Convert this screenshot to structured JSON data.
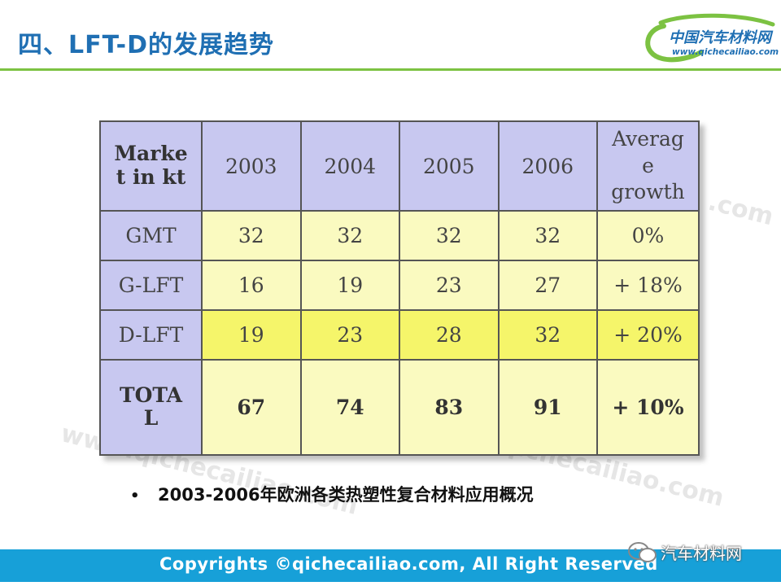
{
  "slide": {
    "title": "四、LFT-D的发展趋势",
    "caption": "2003-2006年欧洲各类热塑性复合材料应用概况",
    "bullet": "•",
    "footer": "Copyrights ©qichecailiao.com,  All Right Reserved",
    "wechat_label": "汽车材料网"
  },
  "logo": {
    "name": "中国汽车材料网",
    "url": "www.qichecailiao.com"
  },
  "watermarks": [
    "www.qichecailiao.com",
    "www.qichecailiao.com",
    ".com"
  ],
  "table": {
    "corner": [
      "Marke",
      "t in kt"
    ],
    "years": [
      "2003",
      "2004",
      "2005",
      "2006"
    ],
    "avg_header": [
      "Averag",
      "e",
      "growth"
    ],
    "rows": [
      {
        "label": "GMT",
        "values": [
          "32",
          "32",
          "32",
          "32"
        ],
        "growth": "0%"
      },
      {
        "label": "G-LFT",
        "values": [
          "16",
          "19",
          "23",
          "27"
        ],
        "growth": "+ 18%"
      },
      {
        "label": "D-LFT",
        "values": [
          "19",
          "23",
          "28",
          "32"
        ],
        "growth": "+ 20%"
      },
      {
        "label_lines": [
          "TOTA",
          "L"
        ],
        "values": [
          "67",
          "74",
          "83",
          "91"
        ],
        "growth": "+ 10%"
      }
    ]
  },
  "colors": {
    "title": "#1f6fb3",
    "rule": "#7cc242",
    "header_bg": "#c8c8f0",
    "cell_light": "#fafac0",
    "cell_highlight": "#f5f56a",
    "footer_bg": "#17a0d8"
  }
}
